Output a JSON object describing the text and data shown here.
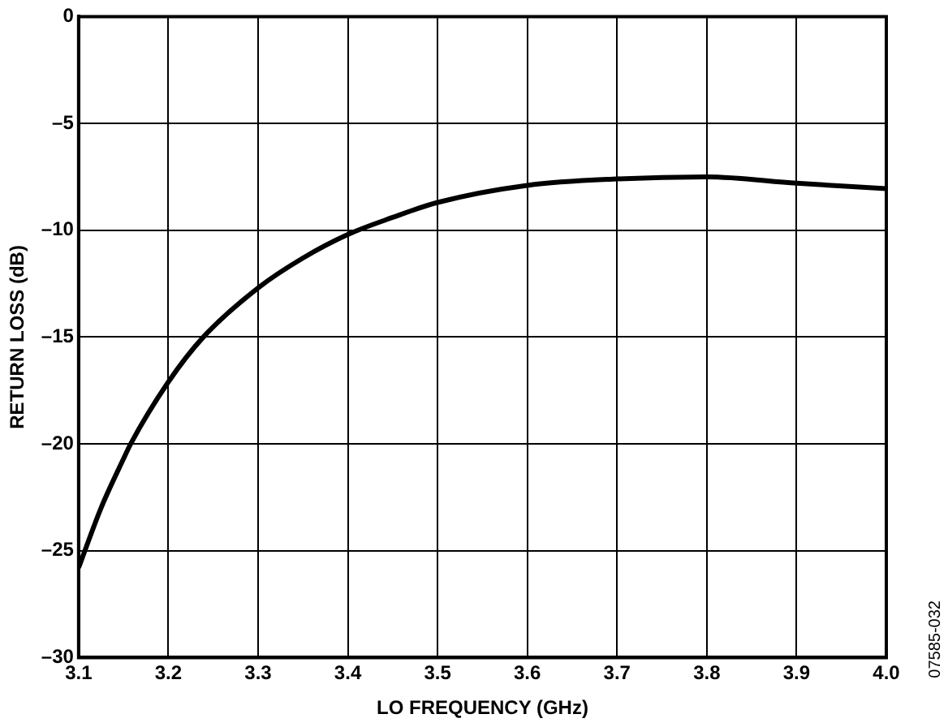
{
  "chart_data": {
    "type": "line",
    "xlabel": "LO FREQUENCY (GHz)",
    "ylabel": "RETURN LOSS (dB)",
    "x": [
      3.1,
      3.125,
      3.15,
      3.158,
      3.2,
      3.239,
      3.3,
      3.35,
      3.4,
      3.45,
      3.5,
      3.6,
      3.7,
      3.8,
      3.9,
      4.0
    ],
    "series": [
      {
        "color": "#000000",
        "values": [
          -25.8,
          -23.0,
          -20.7,
          -20.0,
          -17.1,
          -15.0,
          -12.7,
          -11.3,
          -10.2,
          -9.4,
          -8.7,
          -7.9,
          -7.6,
          -7.5,
          -7.8,
          -8.05
        ]
      }
    ],
    "xlim": [
      3.1,
      4.0
    ],
    "xticks": [
      {
        "value": 3.1,
        "label": "3.1"
      },
      {
        "value": 3.2,
        "label": "3.2"
      },
      {
        "value": 3.3,
        "label": "3.3"
      },
      {
        "value": 3.4,
        "label": "3.4"
      },
      {
        "value": 3.5,
        "label": "3.5"
      },
      {
        "value": 3.6,
        "label": "3.6"
      },
      {
        "value": 3.7,
        "label": "3.7"
      },
      {
        "value": 3.8,
        "label": "3.8"
      },
      {
        "value": 3.9,
        "label": "3.9"
      },
      {
        "value": 4.0,
        "label": "4.0"
      }
    ],
    "ylim": [
      -30,
      0
    ],
    "yticks": [
      {
        "value": -30,
        "label": "–30"
      },
      {
        "value": -25,
        "label": "–25"
      },
      {
        "value": -20,
        "label": "–20"
      },
      {
        "value": -15,
        "label": "–15"
      },
      {
        "value": -10,
        "label": "–10"
      },
      {
        "value": -5,
        "label": "–5"
      },
      0
    ],
    "grid": true,
    "legend": false,
    "marker": "none",
    "line_style": "solid",
    "annotations": [
      "07585-032"
    ]
  }
}
